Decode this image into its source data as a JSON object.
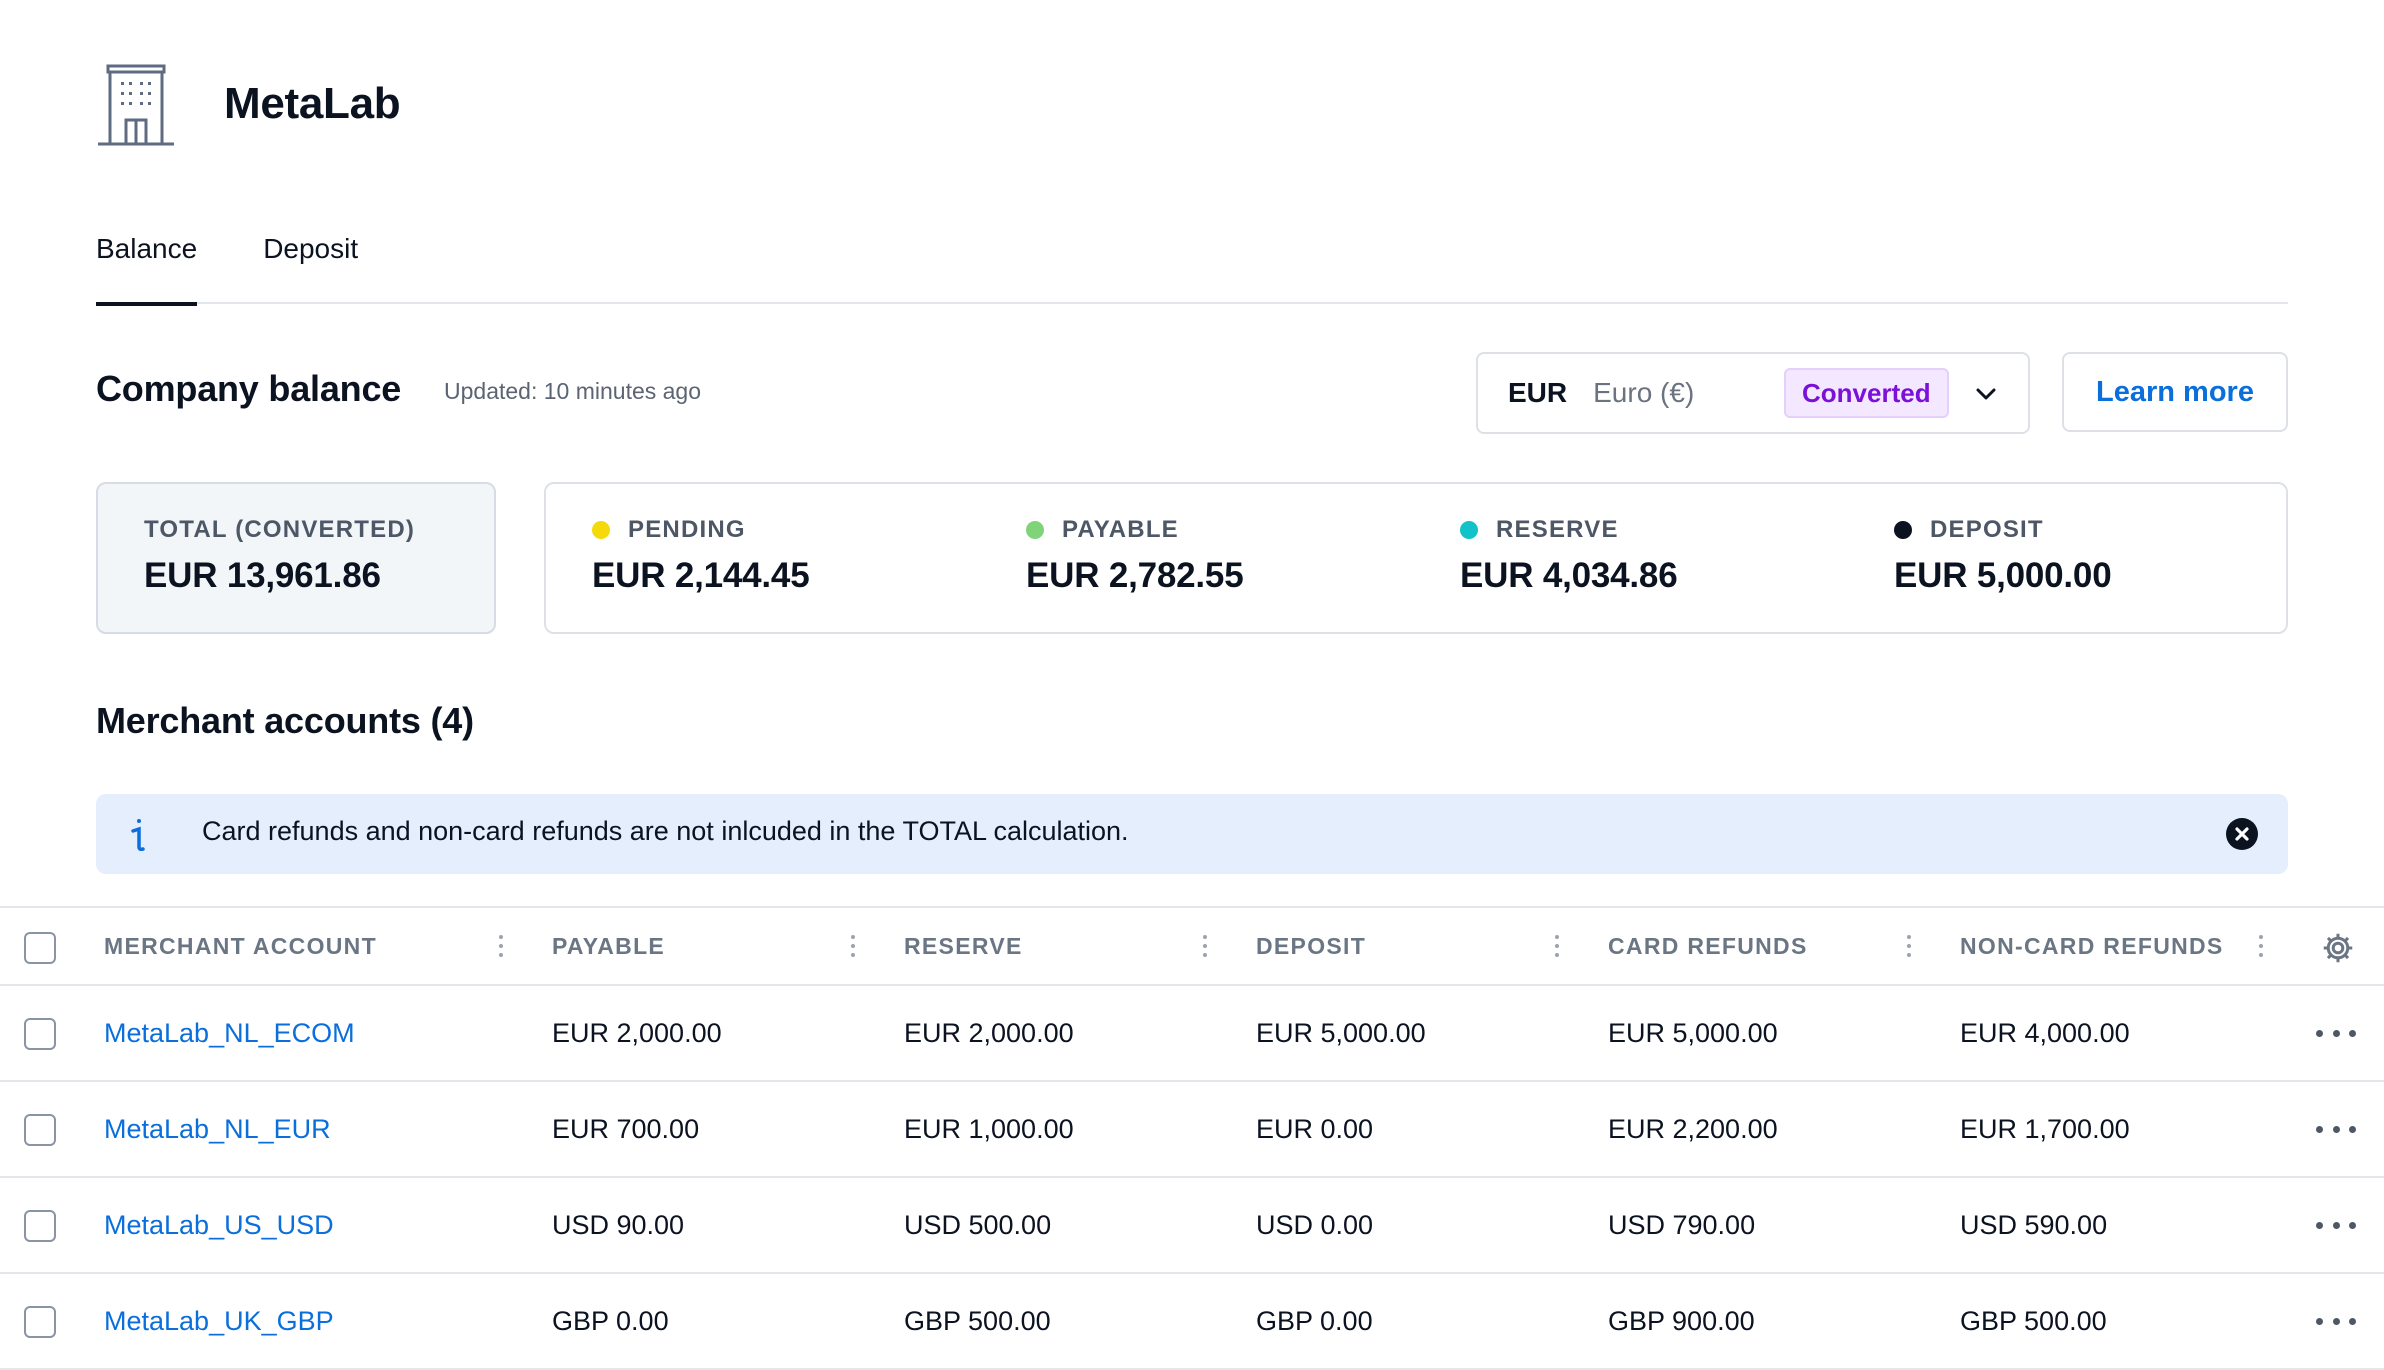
{
  "company": {
    "name": "MetaLab",
    "icon": "building-icon"
  },
  "tabs": [
    {
      "label": "Balance",
      "active": true
    },
    {
      "label": "Deposit",
      "active": false
    }
  ],
  "balance": {
    "title": "Company balance",
    "updated": "Updated: 10 minutes ago",
    "currency": {
      "code": "EUR",
      "name": "Euro (€)",
      "badge": "Converted"
    },
    "learn_more": "Learn more",
    "total": {
      "label": "TOTAL (CONVERTED)",
      "value": "EUR 13,961.86"
    },
    "stats": [
      {
        "label": "PENDING",
        "value": "EUR 2,144.45",
        "color": "#f5d90a"
      },
      {
        "label": "PAYABLE",
        "value": "EUR 2,782.55",
        "color": "#7fd47a"
      },
      {
        "label": "RESERVE",
        "value": "EUR 4,034.86",
        "color": "#13c2c8"
      },
      {
        "label": "DEPOSIT",
        "value": "EUR 5,000.00",
        "color": "#0b1220"
      }
    ]
  },
  "merchants": {
    "title": "Merchant accounts (4)",
    "alert": "Card refunds and non-card refunds are not inlcuded in the TOTAL calculation.",
    "columns": [
      "MERCHANT ACCOUNT",
      "PAYABLE",
      "RESERVE",
      "DEPOSIT",
      "CARD REFUNDS",
      "NON-CARD REFUNDS"
    ],
    "rows": [
      [
        "MetaLab_NL_ECOM",
        "EUR 2,000.00",
        "EUR 2,000.00",
        "EUR 5,000.00",
        "EUR 5,000.00",
        "EUR 4,000.00"
      ],
      [
        "MetaLab_NL_EUR",
        "EUR 700.00",
        "EUR 1,000.00",
        "EUR 0.00",
        "EUR 2,200.00",
        "EUR 1,700.00"
      ],
      [
        "MetaLab_US_USD",
        "USD 90.00",
        "USD 500.00",
        "USD 0.00",
        "USD 790.00",
        "USD 590.00"
      ],
      [
        "MetaLab_UK_GBP",
        "GBP 0.00",
        "GBP 500.00",
        "GBP 0.00",
        "GBP 900.00",
        "GBP 500.00"
      ]
    ]
  },
  "colors": {
    "accent": "#0a6edb",
    "badge_text": "#7b11d6",
    "alert_bg": "#e4eefc"
  }
}
